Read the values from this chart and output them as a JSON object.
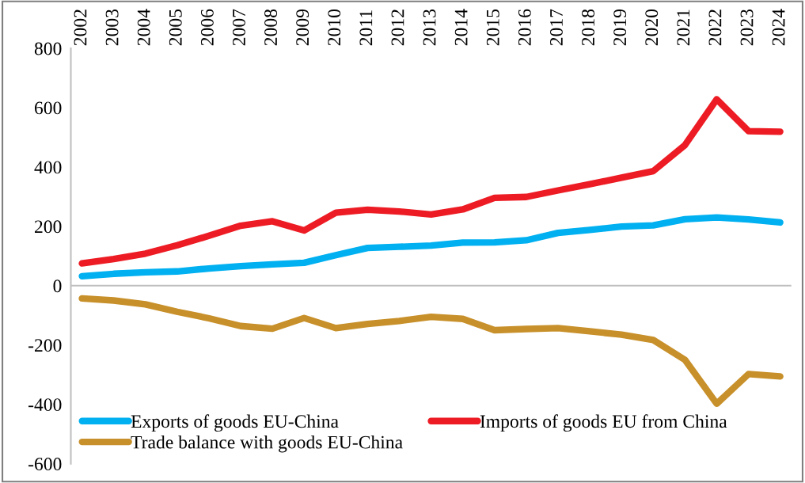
{
  "chart_data": {
    "type": "line",
    "categories": [
      "2002",
      "2003",
      "2004",
      "2005",
      "2006",
      "2007",
      "2008",
      "2009",
      "2010",
      "2011",
      "2012",
      "2013",
      "2014",
      "2015",
      "2016",
      "2017",
      "2018",
      "2019",
      "2020",
      "2021",
      "2022",
      "2023",
      "2024"
    ],
    "series": [
      {
        "name": "Exports of goods EU-China",
        "color": "#00b0f0",
        "values": [
          32,
          40,
          45,
          48,
          58,
          66,
          72,
          77,
          103,
          127,
          131,
          135,
          145,
          146,
          153,
          178,
          188,
          199,
          203,
          224,
          230,
          223,
          213
        ]
      },
      {
        "name": "Imports of goods EU from China",
        "color": "#ed1c24",
        "values": [
          75,
          90,
          108,
          136,
          168,
          202,
          217,
          186,
          246,
          256,
          250,
          240,
          257,
          296,
          299,
          321,
          342,
          364,
          386,
          474,
          628,
          521,
          519
        ]
      },
      {
        "name": "Trade balance with goods EU-China",
        "color": "#c8902a",
        "values": [
          -43,
          -50,
          -63,
          -88,
          -110,
          -136,
          -145,
          -109,
          -143,
          -129,
          -119,
          -105,
          -112,
          -150,
          -146,
          -143,
          -154,
          -165,
          -183,
          -250,
          -398,
          -298,
          -306
        ]
      }
    ],
    "ylim": [
      -600,
      800
    ],
    "yticks": [
      -600,
      -400,
      -200,
      0,
      200,
      400,
      600,
      800
    ],
    "ref_lines": [
      {
        "axis": "y",
        "value": 0,
        "color": "#bfbfbf",
        "line_style": "solid"
      }
    ],
    "grid": false,
    "legend": "bottom left",
    "marker": "none",
    "line_style": "solid"
  }
}
